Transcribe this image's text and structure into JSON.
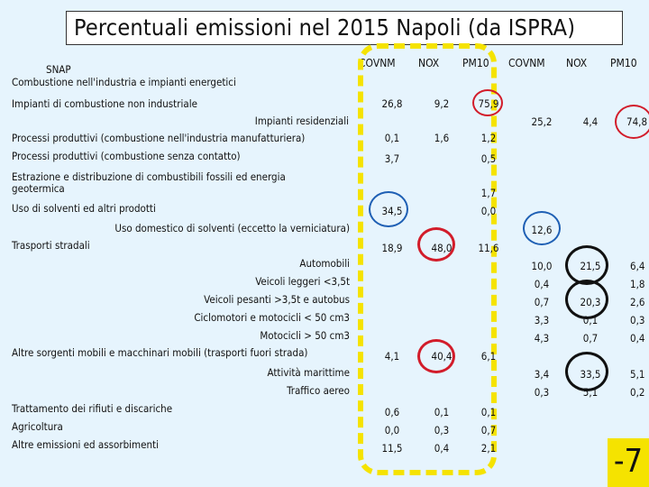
{
  "title": "Percentuali emissioni nel 2015 Napoli (da ISPRA)",
  "columns": [
    "COVNM",
    "NOX",
    "PM10",
    "COVNM",
    "NOX",
    "PM10"
  ],
  "rows": [
    {
      "label": "SNAP"
    },
    {
      "label": "Combustione nell'industria e impianti energetici"
    },
    {
      "label": "Impianti di combustione non industriale",
      "values": [
        "26,8",
        "9,2",
        "75,9"
      ]
    },
    {
      "label": "Impianti residenziali",
      "values": [
        "25,2",
        "4,4",
        "74,8"
      ]
    },
    {
      "label": "Processi produttivi (combustione nell'industria manufatturiera)",
      "values": [
        "0,1",
        "1,6",
        "1,2"
      ]
    },
    {
      "label": "Processi produttivi (combustione senza contatto)",
      "values": [
        "3,7",
        "0,5"
      ]
    },
    {
      "label": "Estrazione e distribuzione di combustibili fossili ed energia",
      "label2": "geotermica",
      "values": [
        "1,7"
      ]
    },
    {
      "label": "Uso di solventi ed altri prodotti",
      "values": [
        "34,5",
        "0,0"
      ]
    },
    {
      "label": "Uso domestico di solventi (eccetto la verniciatura)",
      "values": [
        "12,6"
      ]
    },
    {
      "label": "Trasporti stradali",
      "values": [
        "18,9",
        "48,0",
        "11,6"
      ]
    },
    {
      "label": "Automobili",
      "values": [
        "10,0",
        "21,5",
        "6,4"
      ]
    },
    {
      "label": "Veicoli leggeri <3,5t",
      "values": [
        "0,4",
        "1,8"
      ]
    },
    {
      "label": "Veicoli pesanti >3,5t e autobus",
      "values": [
        "0,7",
        "20,3",
        "2,6"
      ]
    },
    {
      "label": "Ciclomotori e motocicli < 50 cm3",
      "values": [
        "3,3",
        "0,1",
        "0,3"
      ]
    },
    {
      "label": "Motocicli > 50 cm3",
      "values": [
        "4,3",
        "0,7",
        "0,4"
      ]
    },
    {
      "label": "Altre sorgenti mobili e macchinari mobili (trasporti fuori strada)",
      "values": [
        "4,1",
        "40,4",
        "6,1"
      ]
    },
    {
      "label": "Attività marittime",
      "values": [
        "3,4",
        "33,5",
        "5,1"
      ]
    },
    {
      "label": "Traffico aereo",
      "values": [
        "0,3",
        "5,1",
        "0,2"
      ]
    },
    {
      "label": "Trattamento dei rifiuti e discariche",
      "values": [
        "0,6",
        "0,1",
        "0,1"
      ]
    },
    {
      "label": "Agricoltura",
      "values": [
        "0,0",
        "0,3",
        "0,7"
      ]
    },
    {
      "label": "Altre emissioni ed assorbimenti",
      "values": [
        "11,5",
        "0,4",
        "2,1"
      ]
    }
  ],
  "slide_number": "-7",
  "colors": {
    "highlight_dash": "#f5e300",
    "circle_blue": "#1e5fb4",
    "circle_red": "#d21c2a",
    "circle_black": "#111111",
    "background": "#e6f4fd"
  }
}
